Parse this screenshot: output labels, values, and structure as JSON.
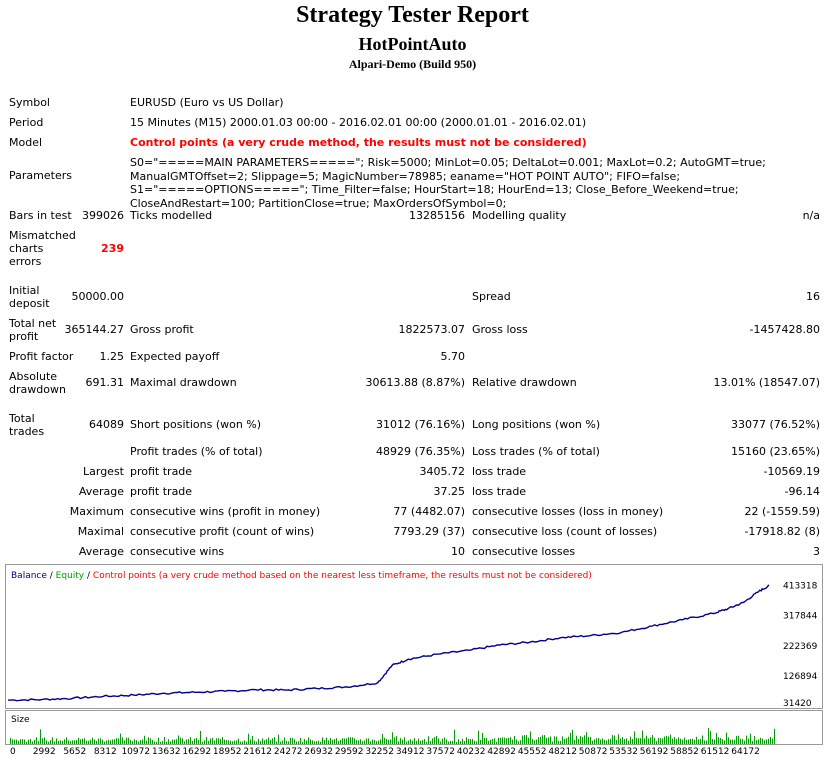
{
  "header": {
    "title": "Strategy Tester Report",
    "subtitle": "HotPointAuto",
    "broker": "Alpari-Demo (Build 950)"
  },
  "report": {
    "symbol_label": "Symbol",
    "symbol_value": "EURUSD (Euro vs US Dollar)",
    "period_label": "Period",
    "period_value": "15 Minutes (M15) 2000.01.03 00:00 - 2016.02.01 00:00 (2000.01.01 - 2016.02.01)",
    "model_label": "Model",
    "model_value": "Control points (a very crude method, the results must not be considered)",
    "parameters_label": "Parameters",
    "parameters_value": "S0=\"=====MAIN PARAMETERS=====\"; Risk=5000; MinLot=0.05; DeltaLot=0.001; MaxLot=0.2; AutoGMT=true; ManualGMTOffset=2; Slippage=5; MagicNumber=78985; eaname=\"HOT POINT AUTO\"; FIFO=false; S1=\"=====OPTIONS=====\"; Time_Filter=false; HourStart=18; HourEnd=13; Close_Before_Weekend=true; CloseAndRestart=100; PartitionClose=true; MaxOrdersOfSymbol=0;",
    "bars_label": "Bars in test",
    "bars_value": "399026",
    "ticks_label": "Ticks modelled",
    "ticks_value": "13285156",
    "quality_label": "Modelling quality",
    "quality_value": "n/a",
    "mismatch_label": "Mismatched charts errors",
    "mismatch_value": "239",
    "deposit_label": "Initial deposit",
    "deposit_value": "50000.00",
    "spread_label": "Spread",
    "spread_value": "16",
    "net_label": "Total net profit",
    "net_value": "365144.27",
    "gross_profit_label": "Gross profit",
    "gross_profit_value": "1822573.07",
    "gross_loss_label": "Gross loss",
    "gross_loss_value": "-1457428.80",
    "pf_label": "Profit factor",
    "pf_value": "1.25",
    "payoff_label": "Expected payoff",
    "payoff_value": "5.70",
    "abs_dd_label": "Absolute drawdown",
    "abs_dd_value": "691.31",
    "max_dd_label": "Maximal drawdown",
    "max_dd_value": "30613.88 (8.87%)",
    "rel_dd_label": "Relative drawdown",
    "rel_dd_value": "13.01% (18547.07)",
    "trades_label": "Total trades",
    "trades_value": "64089",
    "short_label": "Short positions (won %)",
    "short_value": "31012 (76.16%)",
    "long_label": "Long positions (won %)",
    "long_value": "33077 (76.52%)",
    "profit_trades_label": "Profit trades (% of total)",
    "profit_trades_value": "48929 (76.35%)",
    "loss_trades_label": "Loss trades (% of total)",
    "loss_trades_value": "15160 (23.65%)",
    "largest_label": "Largest",
    "largest_pt_label": "profit trade",
    "largest_pt_value": "3405.72",
    "largest_lt_label": "loss trade",
    "largest_lt_value": "-10569.19",
    "average_label": "Average",
    "average_pt_label": "profit trade",
    "average_pt_value": "37.25",
    "average_lt_label": "loss trade",
    "average_lt_value": "-96.14",
    "maximum_label": "Maximum",
    "max_cw_label": "consecutive wins (profit in money)",
    "max_cw_value": "77 (4482.07)",
    "max_cl_label": "consecutive losses (loss in money)",
    "max_cl_value": "22 (-1559.59)",
    "maximal_label": "Maximal",
    "maximal_cp_label": "consecutive profit (count of wins)",
    "maximal_cp_value": "7793.29 (37)",
    "maximal_cl_label": "consecutive loss (count of losses)",
    "maximal_cl_value": "-17918.82 (8)",
    "avg2_label": "Average",
    "avg_cw_label": "consecutive wins",
    "avg_cw_value": "10",
    "avg_cl_label": "consecutive losses",
    "avg_cl_value": "3"
  },
  "chart_data": {
    "type": "line",
    "legend": {
      "balance": "Balance",
      "sep1": " / ",
      "equity": "Equity",
      "sep2": " / ",
      "note": "Control points (a very crude method based on the nearest less timeframe, the results must not be considered)"
    },
    "colors": {
      "balance": "#00008b",
      "equity": "#00a000",
      "note": "#ff0000",
      "size": "#00a000"
    },
    "y_ticks": [
      "413318",
      "317844",
      "222369",
      "126894",
      "31420"
    ],
    "y_tick_values": [
      413318,
      317844,
      222369,
      126894,
      31420
    ],
    "ylim": [
      31420,
      428000
    ],
    "xlim": [
      0,
      67000
    ],
    "x_ticks": [
      "0",
      "2992",
      "5652",
      "8312",
      "10972",
      "13632",
      "16292",
      "18952",
      "21612",
      "24272",
      "26932",
      "29592",
      "32252",
      "34912",
      "37572",
      "40232",
      "42892",
      "45552",
      "48212",
      "50872",
      "53532",
      "56192",
      "58852",
      "61512",
      "64172"
    ],
    "x_tick_values": [
      0,
      2992,
      5652,
      8312,
      10972,
      13632,
      16292,
      18952,
      21612,
      24272,
      26932,
      29592,
      32252,
      34912,
      37572,
      40232,
      42892,
      45552,
      48212,
      50872,
      53532,
      56192,
      58852,
      61512,
      64172
    ],
    "size_label": "Size",
    "series": [
      {
        "name": "Balance",
        "x": [
          0,
          2992,
          5652,
          8312,
          10972,
          13632,
          16292,
          18952,
          21612,
          24272,
          26932,
          29592,
          32252,
          33500,
          34912,
          37572,
          40232,
          42892,
          45552,
          48212,
          50872,
          53532,
          56192,
          58852,
          61512,
          62800,
          64172,
          65500,
          66400
        ],
        "y": [
          50000,
          52000,
          56000,
          62000,
          66000,
          72000,
          75000,
          78000,
          83000,
          82000,
          87000,
          92000,
          105000,
          160000,
          180000,
          196000,
          208000,
          225000,
          234000,
          248000,
          255000,
          265000,
          285000,
          305000,
          325000,
          340000,
          360000,
          395000,
          413000
        ]
      }
    ]
  }
}
